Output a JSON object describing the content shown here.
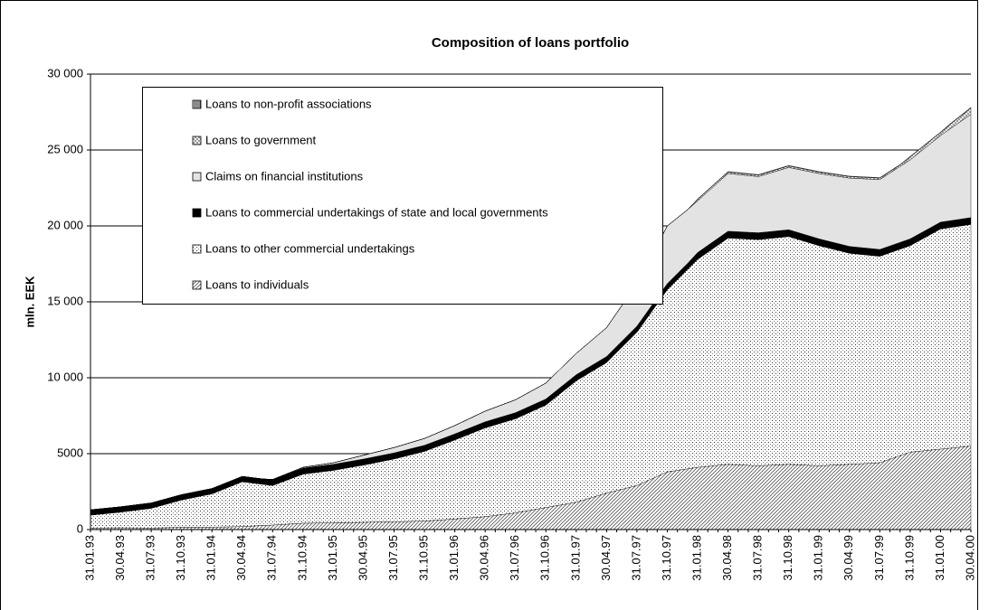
{
  "chart_data": {
    "type": "stacked-area",
    "title": "Composition of loans portfolio",
    "y_label": "mln. EEK",
    "categories": [
      "31.01.93",
      null,
      null,
      "30.04.93",
      null,
      null,
      "31.07.93",
      null,
      null,
      "31.10.93",
      null,
      null,
      "31.01.94",
      null,
      null,
      "30.04.94",
      null,
      null,
      "31.07.94",
      null,
      null,
      "31.10.94",
      null,
      null,
      "31.01.95",
      null,
      null,
      "30.04.95",
      null,
      null,
      "31.07.95",
      null,
      null,
      "31.10.95",
      null,
      null,
      "31.01.96",
      null,
      null,
      "30.04.96",
      null,
      null,
      "31.07.96",
      null,
      null,
      "31.10.96",
      null,
      null,
      "31.01.97",
      null,
      null,
      "30.04.97",
      null,
      null,
      "31.07.97",
      null,
      null,
      "31.10.97",
      null,
      null,
      "31.01.98",
      null,
      null,
      "30.04.98",
      null,
      null,
      "31.07.98",
      null,
      null,
      "31.10.98",
      null,
      null,
      "31.01.99",
      null,
      null,
      "30.04.99",
      null,
      null,
      "31.07.99",
      null,
      null,
      "31.10.99",
      null,
      null,
      "31.01.00",
      null,
      null,
      "30.04.00"
    ],
    "series": [
      {
        "name": "Loans to individuals",
        "color": "#555555",
        "pattern": "diagonal",
        "values": [
          100,
          107,
          113,
          120,
          113,
          107,
          100,
          117,
          133,
          150,
          153,
          157,
          160,
          173,
          187,
          200,
          233,
          267,
          300,
          340,
          380,
          420,
          427,
          433,
          440,
          453,
          467,
          480,
          493,
          507,
          520,
          533,
          547,
          560,
          607,
          653,
          700,
          750,
          800,
          850,
          933,
          1017,
          1100,
          1217,
          1333,
          1450,
          1567,
          1683,
          1800,
          2000,
          2200,
          2400,
          2567,
          2733,
          2900,
          3200,
          3500,
          3800,
          3900,
          4000,
          4100,
          4167,
          4233,
          4300,
          4267,
          4233,
          4200,
          4233,
          4267,
          4300,
          4267,
          4233,
          4200,
          4233,
          4267,
          4300,
          4333,
          4367,
          4400,
          4633,
          4867,
          5100,
          5167,
          5233,
          5300,
          5367,
          5433,
          5500
        ]
      },
      {
        "name": "Loans to other commercial undertakings",
        "color": "#333333",
        "pattern": "dots",
        "values": [
          850,
          910,
          970,
          1030,
          1120,
          1210,
          1300,
          1467,
          1633,
          1800,
          1930,
          2060,
          2190,
          2443,
          2697,
          2950,
          2833,
          2717,
          2600,
          2810,
          3020,
          3230,
          3307,
          3383,
          3460,
          3563,
          3667,
          3770,
          3890,
          4010,
          4130,
          4283,
          4437,
          4590,
          4793,
          4997,
          5200,
          5417,
          5633,
          5850,
          5967,
          6083,
          6200,
          6383,
          6567,
          6750,
          7167,
          7583,
          8000,
          8200,
          8400,
          8600,
          9100,
          9600,
          10100,
          10733,
          11367,
          12000,
          12567,
          13133,
          13700,
          14100,
          14500,
          14900,
          14900,
          14900,
          14900,
          14933,
          14967,
          15000,
          14833,
          14667,
          14500,
          14300,
          14100,
          13900,
          13800,
          13700,
          13600,
          13600,
          13600,
          13600,
          13900,
          14200,
          14500,
          14533,
          14567,
          14600
        ]
      },
      {
        "name": "Loans to commercial undertakings of state and local governments",
        "color": "#000000",
        "pattern": "solid",
        "values": [
          350,
          350,
          350,
          350,
          350,
          350,
          350,
          350,
          350,
          350,
          350,
          350,
          350,
          350,
          350,
          350,
          350,
          350,
          400,
          400,
          400,
          400,
          400,
          400,
          400,
          400,
          400,
          400,
          400,
          400,
          400,
          400,
          400,
          400,
          400,
          400,
          400,
          400,
          400,
          400,
          400,
          400,
          400,
          400,
          400,
          400,
          400,
          400,
          400,
          400,
          400,
          400,
          400,
          400,
          400,
          400,
          400,
          400,
          400,
          400,
          450,
          450,
          450,
          450,
          450,
          450,
          450,
          450,
          450,
          450,
          450,
          450,
          450,
          450,
          450,
          450,
          450,
          450,
          450,
          450,
          450,
          450,
          450,
          450,
          450,
          450,
          450,
          450
        ]
      },
      {
        "name": "Claims on financial institutions",
        "color": "#e3e3e3",
        "pattern": "solid",
        "values": [
          0,
          0,
          0,
          0,
          0,
          0,
          0,
          0,
          0,
          0,
          0,
          0,
          0,
          0,
          0,
          0,
          0,
          0,
          0,
          17,
          33,
          50,
          67,
          83,
          100,
          150,
          200,
          250,
          283,
          317,
          350,
          383,
          417,
          450,
          483,
          517,
          550,
          600,
          650,
          700,
          750,
          800,
          850,
          917,
          983,
          1050,
          1167,
          1283,
          1400,
          1567,
          1733,
          1900,
          2200,
          2500,
          2800,
          3133,
          3467,
          3800,
          3667,
          3533,
          3400,
          3533,
          3667,
          3800,
          3767,
          3733,
          3700,
          3833,
          3967,
          4100,
          4167,
          4233,
          4300,
          4367,
          4433,
          4500,
          4533,
          4567,
          4600,
          4800,
          5000,
          5200,
          5367,
          5533,
          5700,
          6067,
          6433,
          6800
        ]
      },
      {
        "name": "Loans to government",
        "color": "#777777",
        "pattern": "crosshatch",
        "values": [
          0,
          0,
          0,
          0,
          0,
          0,
          0,
          0,
          0,
          0,
          0,
          0,
          0,
          0,
          0,
          0,
          0,
          0,
          0,
          0,
          0,
          0,
          0,
          0,
          0,
          0,
          0,
          0,
          0,
          0,
          0,
          0,
          0,
          0,
          0,
          0,
          0,
          0,
          0,
          0,
          0,
          0,
          0,
          0,
          0,
          0,
          0,
          0,
          0,
          0,
          0,
          0,
          0,
          0,
          0,
          0,
          0,
          0,
          0,
          0,
          100,
          100,
          100,
          100,
          100,
          100,
          100,
          100,
          100,
          100,
          100,
          100,
          100,
          100,
          100,
          100,
          100,
          100,
          100,
          100,
          100,
          200,
          200,
          200,
          200,
          300,
          350,
          400
        ]
      },
      {
        "name": "Loans to non-profit associations",
        "color": "#000000",
        "pattern": "vertical",
        "values": [
          0,
          0,
          0,
          0,
          0,
          0,
          0,
          0,
          0,
          0,
          0,
          0,
          0,
          0,
          0,
          0,
          0,
          0,
          0,
          0,
          0,
          0,
          0,
          0,
          0,
          0,
          0,
          0,
          0,
          0,
          0,
          0,
          0,
          0,
          0,
          0,
          0,
          0,
          0,
          0,
          0,
          0,
          0,
          0,
          0,
          0,
          0,
          0,
          0,
          0,
          0,
          0,
          0,
          0,
          0,
          0,
          0,
          0,
          0,
          0,
          30,
          30,
          30,
          30,
          30,
          30,
          30,
          30,
          30,
          30,
          30,
          30,
          30,
          30,
          30,
          30,
          30,
          30,
          30,
          30,
          30,
          30,
          30,
          30,
          30,
          40,
          50,
          60
        ]
      }
    ],
    "ylim": [
      0,
      30000
    ],
    "yticks": [
      0,
      {
        "value": 5000,
        "label": "5000"
      },
      {
        "value": 10000,
        "label": "10 000"
      },
      {
        "value": 15000,
        "label": "15 000"
      },
      {
        "value": 20000,
        "label": "20 000"
      },
      {
        "value": 25000,
        "label": "25 000"
      },
      {
        "value": 30000,
        "label": "30 000"
      }
    ],
    "grid": true,
    "legend": "upper left"
  }
}
